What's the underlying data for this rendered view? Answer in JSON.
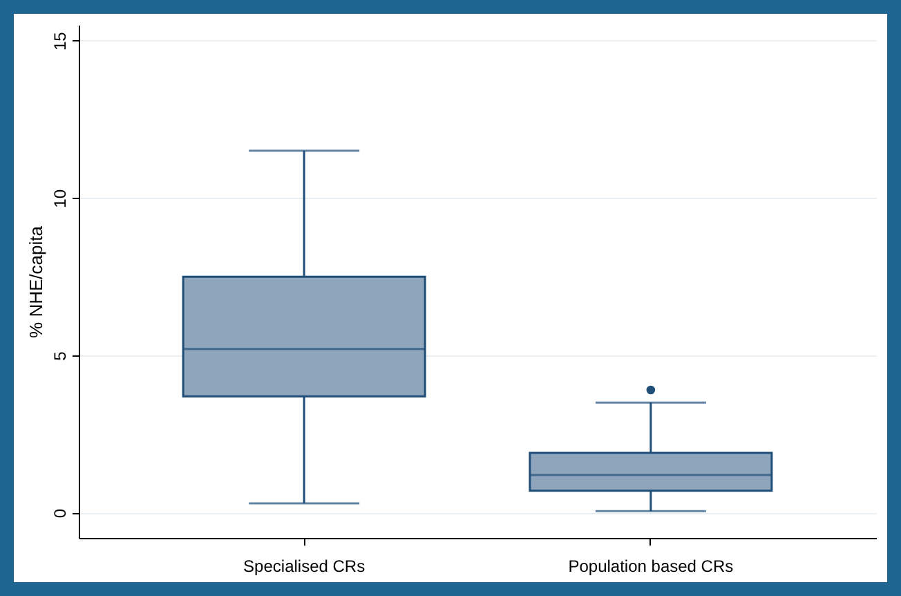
{
  "chart_data": {
    "type": "box",
    "ylabel": "% NHE/capita",
    "categories": [
      "Specialised CRs",
      "Population based CRs"
    ],
    "boxes": [
      {
        "low": 0.3,
        "q1": 3.7,
        "median": 5.2,
        "q3": 7.5,
        "high": 11.5
      },
      {
        "low": 0.05,
        "q1": 0.7,
        "median": 1.2,
        "q3": 1.9,
        "high": 3.5,
        "outliers": [
          3.9
        ]
      }
    ],
    "color": "#8fa5bb",
    "ylim": [
      -0.8,
      15.5
    ],
    "yticks": [
      0,
      5,
      10,
      15
    ],
    "grid": "y"
  }
}
